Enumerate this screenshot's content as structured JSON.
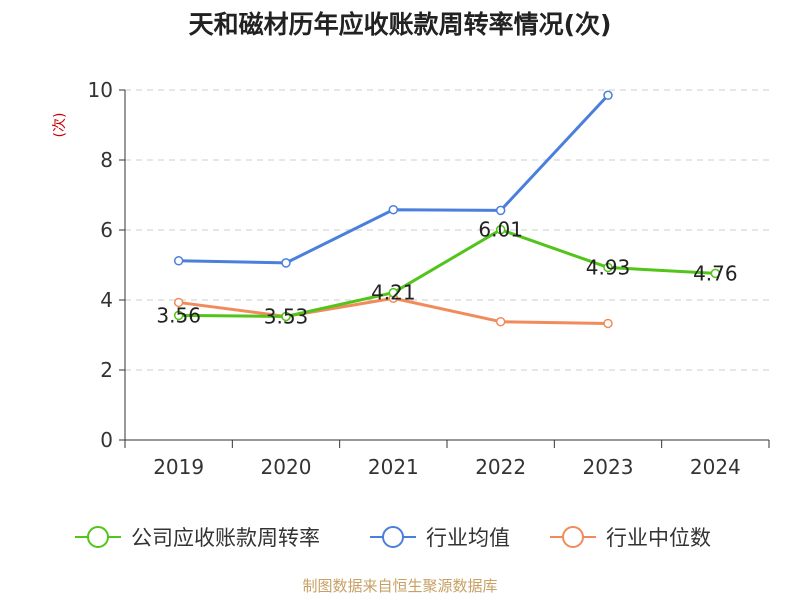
{
  "chart_data": {
    "type": "line",
    "title": "天和磁材历年应收账款周转率情况(次)",
    "unit": "(次)",
    "categories": [
      "2019",
      "2020",
      "2021",
      "2022",
      "2023",
      "2024"
    ],
    "ylim": [
      0,
      10
    ],
    "yticks": [
      0,
      2,
      4,
      6,
      8,
      10
    ],
    "grid": true,
    "legend_position": "bottom",
    "series": [
      {
        "name": "公司应收账款周转率",
        "color": "#52c41a",
        "values": [
          3.56,
          3.53,
          4.21,
          6.01,
          4.93,
          4.76
        ],
        "labels": [
          "3.56",
          "3.53",
          "4.21",
          "6.01",
          "4.93",
          "4.76"
        ]
      },
      {
        "name": "行业均值",
        "color": "#4a7fdc",
        "values": [
          5.12,
          5.06,
          6.58,
          6.56,
          9.85,
          null
        ]
      },
      {
        "name": "行业中位数",
        "color": "#f28b5b",
        "values": [
          3.93,
          3.53,
          4.05,
          3.38,
          3.33,
          null
        ]
      }
    ]
  },
  "colors": {
    "unit": "#cc0000",
    "source": "#c8a064",
    "axis": "#333333",
    "grid": "#cccccc"
  },
  "source": "制图数据来自恒生聚源数据库"
}
